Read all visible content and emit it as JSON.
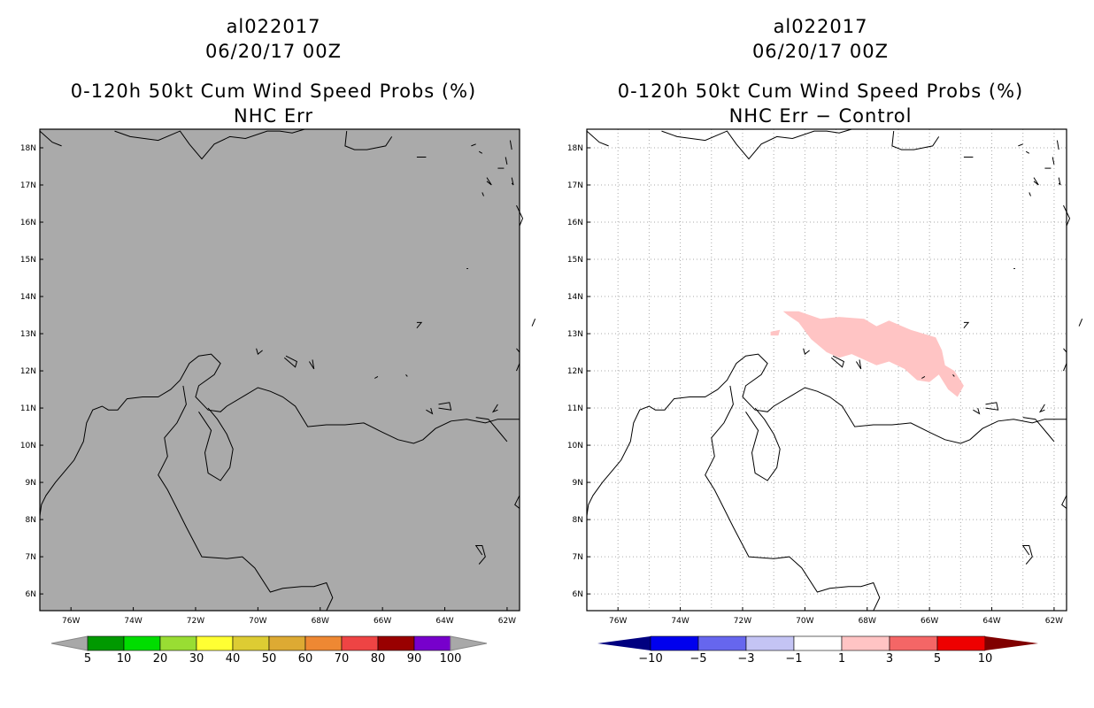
{
  "panels": [
    {
      "storm_id": "al022017",
      "datetime": "06/20/17 00Z",
      "product": "0-120h 50kt Cum Wind Speed Probs (%)",
      "subtitle": "NHC Err",
      "map_fill": "#aaaaaa",
      "gridlines": false,
      "colorbar": {
        "labels": [
          "5",
          "10",
          "20",
          "30",
          "40",
          "50",
          "60",
          "70",
          "80",
          "90",
          "100"
        ],
        "colors": [
          "#a8a8a8",
          "#009900",
          "#00dd00",
          "#99dd33",
          "#ffff33",
          "#ddcc33",
          "#ddaa33",
          "#ee8833",
          "#ee4444",
          "#990000",
          "#7700cc",
          "#a8a8a8"
        ]
      }
    },
    {
      "storm_id": "al022017",
      "datetime": "06/20/17 00Z",
      "product": "0-120h 50kt Cum Wind Speed Probs (%)",
      "subtitle": "NHC Err − Control",
      "map_fill": "#ffffff",
      "gridlines": true,
      "shaded_region_color": "#ffc4c4",
      "colorbar": {
        "labels": [
          "−10",
          "−5",
          "−3",
          "−1",
          "1",
          "3",
          "5",
          "10"
        ],
        "colors": [
          "#000080",
          "#0000ee",
          "#6666ee",
          "#c4c4f4",
          "#ffffff",
          "#ffc4c4",
          "#f46666",
          "#ee0000",
          "#800000"
        ]
      }
    }
  ],
  "map": {
    "x_ticks": [
      "76W",
      "74W",
      "72W",
      "70W",
      "68W",
      "66W",
      "64W",
      "62W"
    ],
    "y_ticks": [
      "18N",
      "17N",
      "16N",
      "15N",
      "14N",
      "13N",
      "12N",
      "11N",
      "10N",
      "9N",
      "8N",
      "7N",
      "6N"
    ],
    "lon_range": [
      -77.0,
      -61.6
    ],
    "lat_range": [
      5.55,
      18.5
    ]
  }
}
